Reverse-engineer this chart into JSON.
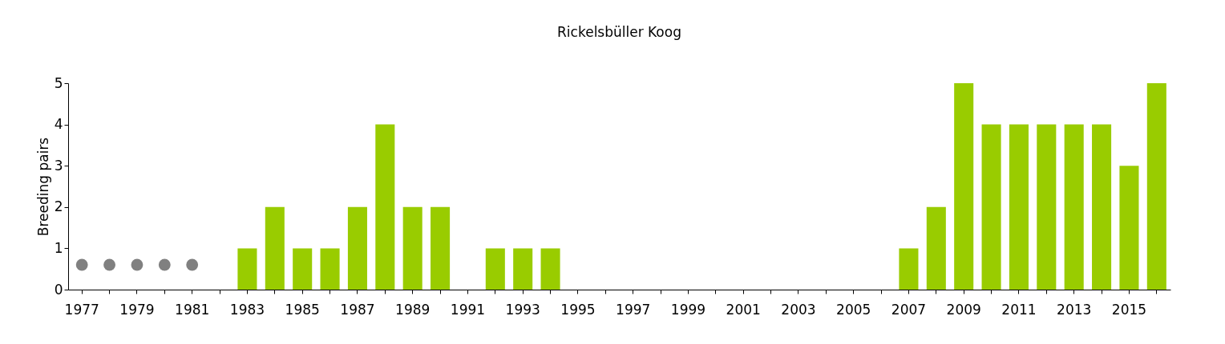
{
  "chart_data": {
    "type": "bar",
    "title": "Rickelsbüller Koog",
    "ylabel": "Breeding pairs",
    "categories": [
      "1977",
      null,
      "1979",
      null,
      "1981",
      null,
      "1983",
      null,
      "1985",
      null,
      "1987",
      null,
      "1989",
      null,
      "1991",
      null,
      "1993",
      null,
      "1995",
      null,
      "1997",
      null,
      "1999",
      null,
      "2001",
      null,
      "2003",
      null,
      "2005",
      null,
      "2007",
      null,
      "2009",
      null,
      "2011",
      null,
      "2013",
      null,
      "2015",
      null
    ],
    "series": [
      {
        "color": "#99cc00",
        "values": [
          null,
          null,
          null,
          null,
          null,
          0,
          1,
          2,
          1,
          1,
          2,
          4,
          2,
          2,
          0,
          1,
          1,
          1,
          0,
          0,
          0,
          0,
          0,
          0,
          0,
          0,
          0,
          0,
          0,
          0,
          1,
          2,
          5,
          4,
          4,
          4,
          4,
          4,
          3,
          5
        ]
      },
      {
        "type": "scatter",
        "color": "#808080",
        "values": [
          0.6,
          0.6,
          0.6,
          0.6,
          0.6,
          null,
          null,
          null,
          null,
          null,
          null,
          null,
          null,
          null,
          null,
          null,
          null,
          null,
          null,
          null,
          null,
          null,
          null,
          null,
          null,
          null,
          null,
          null,
          null,
          null,
          null,
          null,
          null,
          null,
          null,
          null,
          null,
          null,
          null,
          null
        ]
      }
    ],
    "ylim": [
      0,
      5
    ],
    "yticks": [
      0,
      1,
      2,
      3,
      4,
      5
    ],
    "grid": false
  }
}
